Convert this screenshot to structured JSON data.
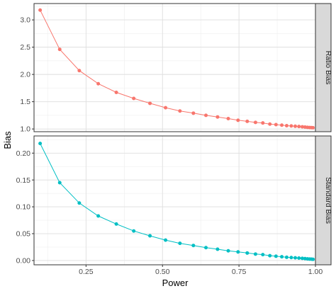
{
  "chart_data": {
    "type": "line",
    "xlabel": "Power",
    "ylabel": "Bias",
    "xlim": [
      0.08,
      1.0
    ],
    "x_ticks": [
      "0.25",
      "0.50",
      "0.75",
      "1.00"
    ],
    "x_tick_values": [
      0.25,
      0.5,
      0.75,
      1.0
    ],
    "grid": true,
    "background": "#ffffff",
    "strip_fill": "#d9d9d9",
    "x": [
      0.1,
      0.164,
      0.228,
      0.29,
      0.349,
      0.406,
      0.459,
      0.51,
      0.557,
      0.601,
      0.642,
      0.68,
      0.715,
      0.747,
      0.777,
      0.804,
      0.828,
      0.851,
      0.871,
      0.89,
      0.906,
      0.921,
      0.934,
      0.946,
      0.957,
      0.966,
      0.974,
      0.981,
      0.987,
      0.992
    ],
    "panels": [
      {
        "strip": "Ratio Bias",
        "color": "#f8766d",
        "ylim": [
          0.95,
          3.3
        ],
        "y_ticks": [
          "1.0",
          "1.5",
          "2.0",
          "2.5",
          "3.0"
        ],
        "y_tick_values": [
          1.0,
          1.5,
          2.0,
          2.5,
          3.0
        ],
        "y": [
          3.18,
          2.46,
          2.07,
          1.83,
          1.67,
          1.56,
          1.47,
          1.39,
          1.33,
          1.29,
          1.25,
          1.22,
          1.19,
          1.16,
          1.14,
          1.12,
          1.11,
          1.09,
          1.08,
          1.07,
          1.06,
          1.055,
          1.05,
          1.045,
          1.04,
          1.035,
          1.03,
          1.027,
          1.025,
          1.023
        ]
      },
      {
        "strip": "Standard Bias",
        "color": "#00bfc4",
        "ylim": [
          -0.008,
          0.232
        ],
        "y_ticks": [
          "0.00",
          "0.05",
          "0.10",
          "0.15",
          "0.20"
        ],
        "y_tick_values": [
          0.0,
          0.05,
          0.1,
          0.15,
          0.2
        ],
        "y": [
          0.218,
          0.145,
          0.107,
          0.083,
          0.068,
          0.055,
          0.046,
          0.038,
          0.032,
          0.028,
          0.024,
          0.021,
          0.018,
          0.016,
          0.014,
          0.012,
          0.011,
          0.009,
          0.008,
          0.007,
          0.006,
          0.0055,
          0.005,
          0.0045,
          0.004,
          0.0035,
          0.003,
          0.0027,
          0.0025,
          0.0023
        ]
      }
    ]
  }
}
